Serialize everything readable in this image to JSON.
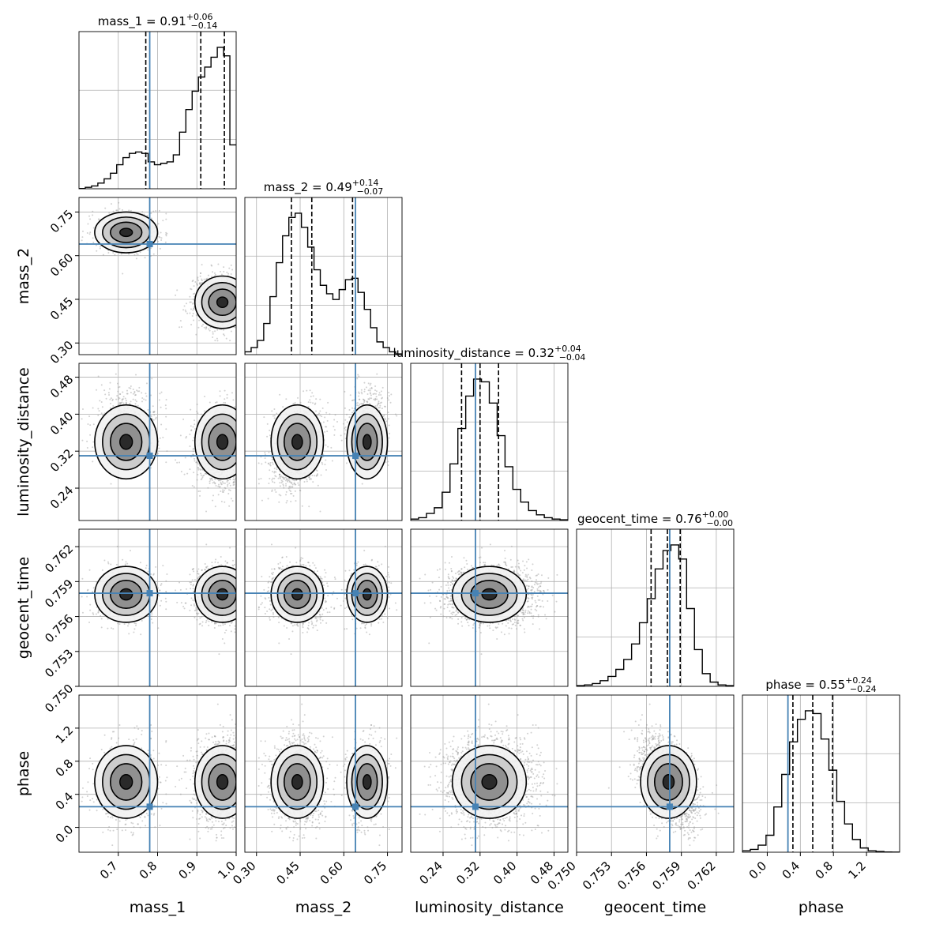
{
  "chart_data": {
    "type": "corner",
    "parameters": [
      "mass_1",
      "mass_2",
      "luminosity_distance",
      "geocent_time",
      "phase"
    ],
    "titles": [
      {
        "name": "mass_1",
        "median": "0.91",
        "upper": "+0.06",
        "lower": "−0.14"
      },
      {
        "name": "mass_2",
        "median": "0.49",
        "upper": "+0.14",
        "lower": "−0.07"
      },
      {
        "name": "luminosity_distance",
        "median": "0.32",
        "upper": "+0.04",
        "lower": "−0.04"
      },
      {
        "name": "geocent_time",
        "median": "0.76",
        "upper": "+0.00",
        "lower": "−0.00"
      },
      {
        "name": "phase",
        "median": "0.55",
        "upper": "+0.24",
        "lower": "−0.24"
      }
    ],
    "ranges": [
      [
        0.6,
        1.0
      ],
      [
        0.26,
        0.8
      ],
      [
        0.17,
        0.51
      ],
      [
        0.75,
        0.7635
      ],
      [
        -0.3,
        1.6
      ]
    ],
    "ticks": [
      [
        0.7,
        0.8,
        0.9,
        1.0
      ],
      [
        0.3,
        0.45,
        0.6,
        0.75
      ],
      [
        0.24,
        0.32,
        0.4,
        0.48
      ],
      [
        0.75,
        0.753,
        0.756,
        0.759,
        0.762
      ],
      [
        0.0,
        0.4,
        0.8,
        1.2
      ]
    ],
    "x_tick_labels": [
      [
        "0.7",
        "0.8",
        "0.9",
        "1.0"
      ],
      [
        "0.30",
        "0.45",
        "0.60",
        "0.75"
      ],
      [
        "0.24",
        "0.32",
        "0.40",
        "0.48"
      ],
      [
        "0.750",
        "0.753",
        "0.756",
        "0.759",
        "0.762"
      ],
      [
        "0.0",
        "0.4",
        "0.8",
        "1.2"
      ]
    ],
    "y_tick_labels": [
      [],
      [
        "0.30",
        "0.45",
        "0.60",
        "0.75"
      ],
      [
        "0.24",
        "0.32",
        "0.40",
        "0.48"
      ],
      [
        "0.750",
        "0.753",
        "0.756",
        "0.759",
        "0.762"
      ],
      [
        "0.0",
        "0.4",
        "0.8",
        "1.2"
      ]
    ],
    "quantiles": [
      [
        0.77,
        0.91,
        0.97
      ],
      [
        0.42,
        0.49,
        0.63
      ],
      [
        0.28,
        0.32,
        0.36
      ],
      [
        0.7564,
        0.7578,
        0.7589
      ],
      [
        0.31,
        0.55,
        0.79
      ]
    ],
    "truths": [
      0.78,
      0.64,
      0.31,
      0.758,
      0.25
    ],
    "histograms": [
      [
        0.002,
        0.01,
        0.02,
        0.04,
        0.07,
        0.11,
        0.17,
        0.22,
        0.25,
        0.26,
        0.25,
        0.19,
        0.17,
        0.18,
        0.19,
        0.24,
        0.4,
        0.56,
        0.69,
        0.79,
        0.86,
        0.93,
        1.0,
        0.94,
        0.31
      ],
      [
        0.02,
        0.05,
        0.1,
        0.22,
        0.41,
        0.65,
        0.84,
        0.97,
        1.0,
        0.9,
        0.76,
        0.6,
        0.49,
        0.43,
        0.39,
        0.46,
        0.53,
        0.54,
        0.44,
        0.32,
        0.19,
        0.09,
        0.05,
        0.02,
        0.005
      ],
      [
        0.01,
        0.02,
        0.05,
        0.09,
        0.2,
        0.4,
        0.65,
        0.88,
        1.0,
        0.98,
        0.83,
        0.6,
        0.38,
        0.22,
        0.13,
        0.07,
        0.04,
        0.02,
        0.01,
        0.005
      ],
      [
        0.005,
        0.01,
        0.02,
        0.04,
        0.07,
        0.12,
        0.19,
        0.3,
        0.45,
        0.62,
        0.83,
        0.96,
        1.0,
        0.9,
        0.55,
        0.26,
        0.09,
        0.03,
        0.01,
        0.005
      ],
      [
        0.01,
        0.02,
        0.05,
        0.12,
        0.32,
        0.55,
        0.78,
        0.94,
        1.0,
        0.98,
        0.8,
        0.58,
        0.36,
        0.2,
        0.09,
        0.03,
        0.01,
        0.005,
        0.002,
        0.001
      ]
    ],
    "modes": {
      "mass_1": [
        {
          "mu": 0.72,
          "sd": 0.04,
          "w": 0.28
        },
        {
          "mu": 0.965,
          "sd": 0.035,
          "w": 0.72
        }
      ],
      "mass_2": [
        {
          "mu": 0.68,
          "sd": 0.035,
          "w": 0.28
        },
        {
          "mu": 0.44,
          "sd": 0.045,
          "w": 0.72
        }
      ],
      "luminosity_distance": [
        {
          "mu": 0.34,
          "sd": 0.04,
          "w": 1.0
        }
      ],
      "geocent_time": [
        {
          "mu": 0.7579,
          "sd": 0.0012,
          "w": 1.0
        }
      ],
      "phase": [
        {
          "mu": 0.55,
          "sd": 0.22,
          "w": 1.0
        }
      ]
    },
    "grid": true,
    "data_color": "#000000",
    "truth_color": "#4682b4"
  }
}
